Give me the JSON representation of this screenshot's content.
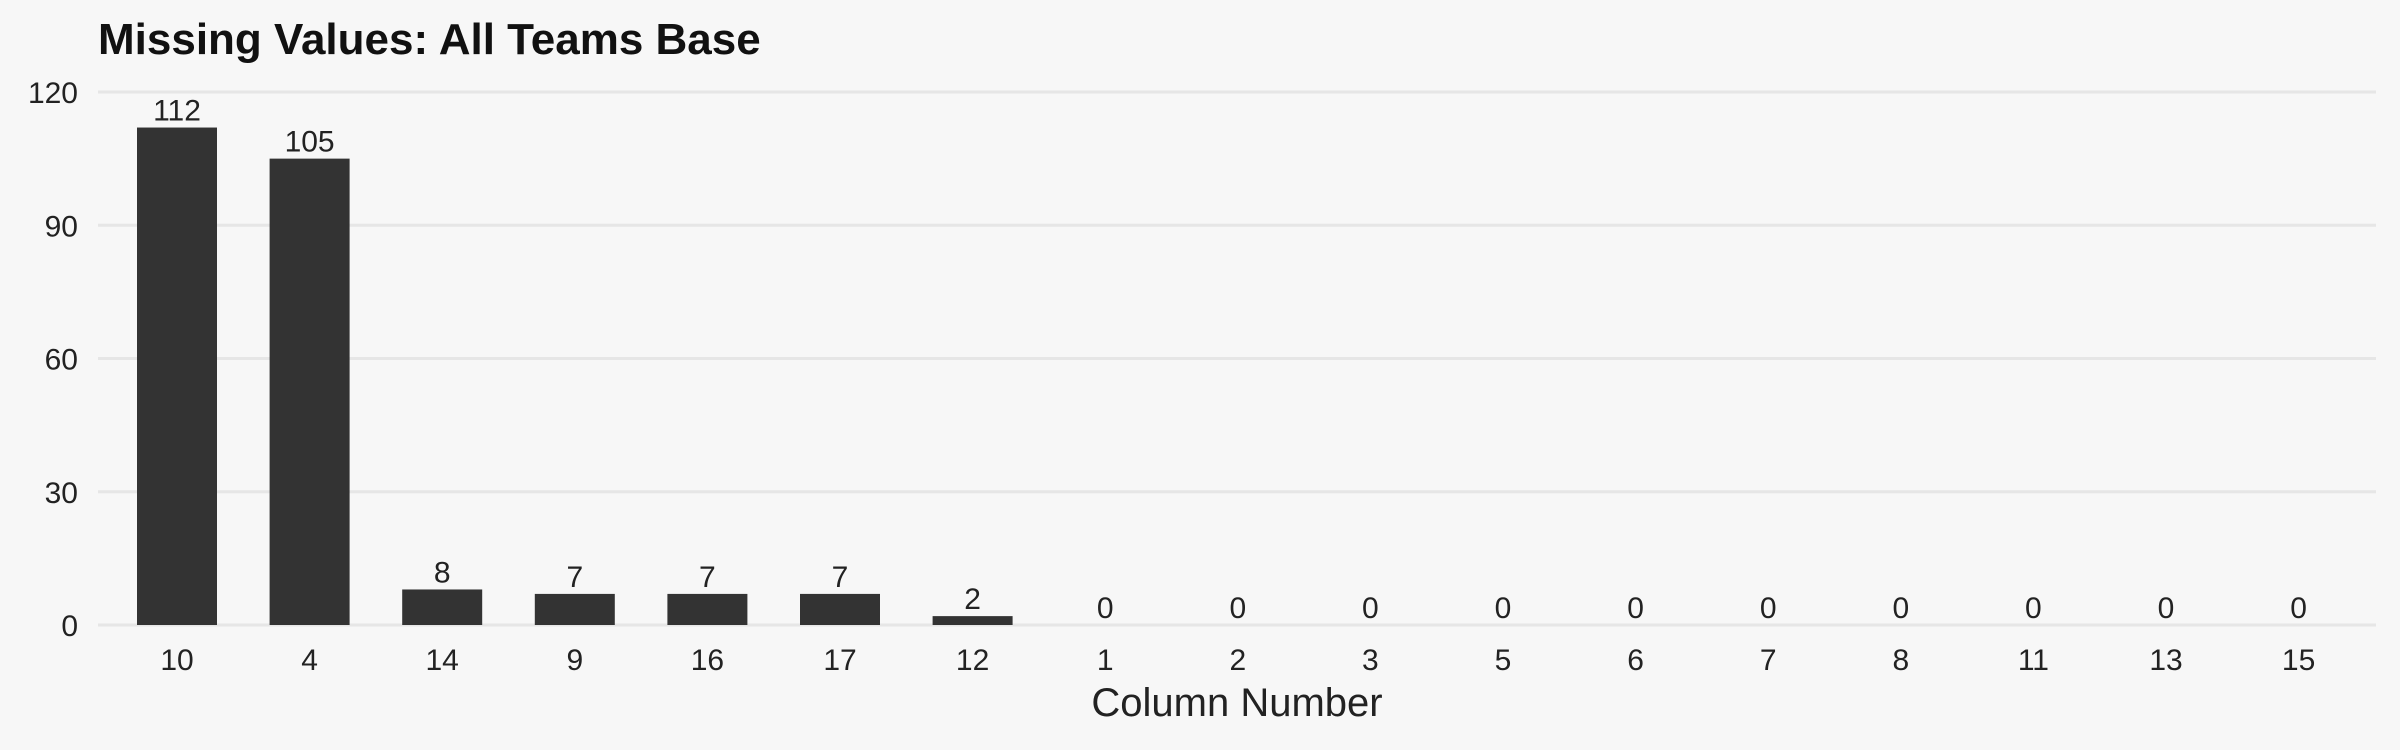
{
  "chart_data": {
    "type": "bar",
    "title": "Missing Values: All Teams Base",
    "xlabel": "Column Number",
    "ylabel": "",
    "categories": [
      "10",
      "4",
      "14",
      "9",
      "16",
      "17",
      "12",
      "1",
      "2",
      "3",
      "5",
      "6",
      "7",
      "8",
      "11",
      "13",
      "15"
    ],
    "values": [
      112,
      105,
      8,
      7,
      7,
      7,
      2,
      0,
      0,
      0,
      0,
      0,
      0,
      0,
      0,
      0,
      0
    ],
    "ylim": [
      0,
      120
    ],
    "yticks": [
      0,
      30,
      60,
      90,
      120
    ],
    "grid": true,
    "legend": "none",
    "bar_color": "#333333"
  }
}
